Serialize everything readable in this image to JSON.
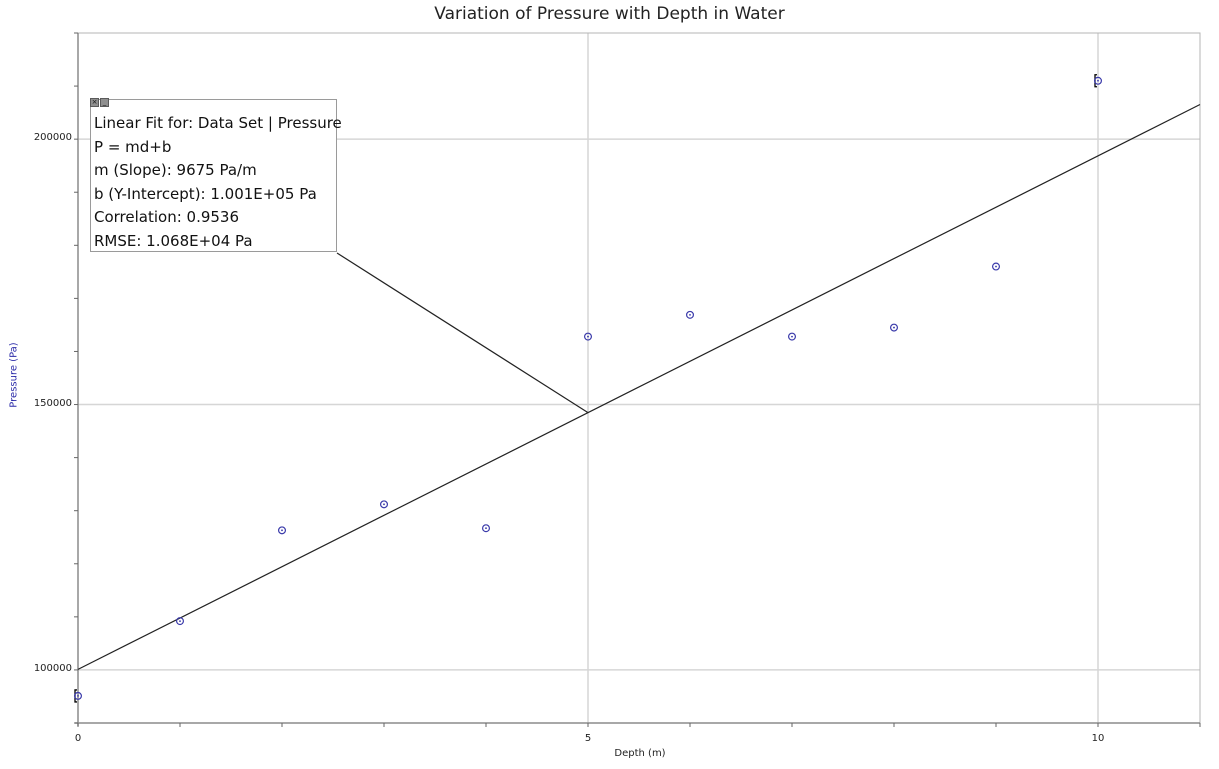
{
  "chart_data": {
    "type": "scatter",
    "title": "Variation of Pressure with Depth in Water",
    "xlabel": "Depth (m)",
    "ylabel": "Pressure (Pa)",
    "xlim": [
      0,
      11
    ],
    "ylim": [
      90000,
      220000
    ],
    "x_ticks": [
      0,
      5,
      10
    ],
    "y_ticks": [
      100000,
      150000,
      200000
    ],
    "x_minor_step": 1,
    "y_minor_step": 10000,
    "grid": true,
    "legend": null,
    "series": [
      {
        "name": "Data Set | Pressure",
        "marker": "circle-dot",
        "color": "#3a3aaa",
        "x": [
          0,
          1,
          2,
          3,
          4,
          5,
          6,
          7,
          8,
          9,
          10
        ],
        "y": [
          95100,
          109200,
          126300,
          131200,
          126700,
          162800,
          166900,
          162800,
          164500,
          176000,
          211000
        ]
      }
    ],
    "fit": {
      "type": "linear",
      "equation": "P = md+b",
      "slope": 9675,
      "intercept": 100100,
      "correlation": 0.9536,
      "rmse": 10680,
      "color": "#222222"
    },
    "annotations": [
      {
        "lines": [
          "Linear Fit for: Data Set | Pressure",
          "P = md+b",
          "m (Slope): 9675 Pa/m",
          "b (Y-Intercept): 1.001E+05 Pa",
          "Correlation: 0.9536",
          "RMSE: 1.068E+04 Pa"
        ],
        "anchor_x": 5
      }
    ]
  },
  "ui": {
    "title": "Variation of Pressure with Depth in Water",
    "xlabel": "Depth (m)",
    "ylabel": "Pressure (Pa)",
    "x_tick_labels": [
      "0",
      "5",
      "10"
    ],
    "y_tick_labels": [
      "100000",
      "150000",
      "200000"
    ],
    "annotation": {
      "close_glyph": "×",
      "minimize_glyph": "_",
      "line0": "Linear Fit for: Data Set | Pressure",
      "line1": "P = md+b",
      "line2": "m (Slope): 9675 Pa/m",
      "line3": "b (Y-Intercept): 1.001E+05 Pa",
      "line4": "Correlation: 0.9536",
      "line5": "RMSE: 1.068E+04 Pa"
    },
    "colors": {
      "axis": "#8c8c8c",
      "grid": "#d6d6d6",
      "marker": "#3a3aaa",
      "fit_line": "#222222",
      "ylabel": "#2a2aa8"
    }
  }
}
